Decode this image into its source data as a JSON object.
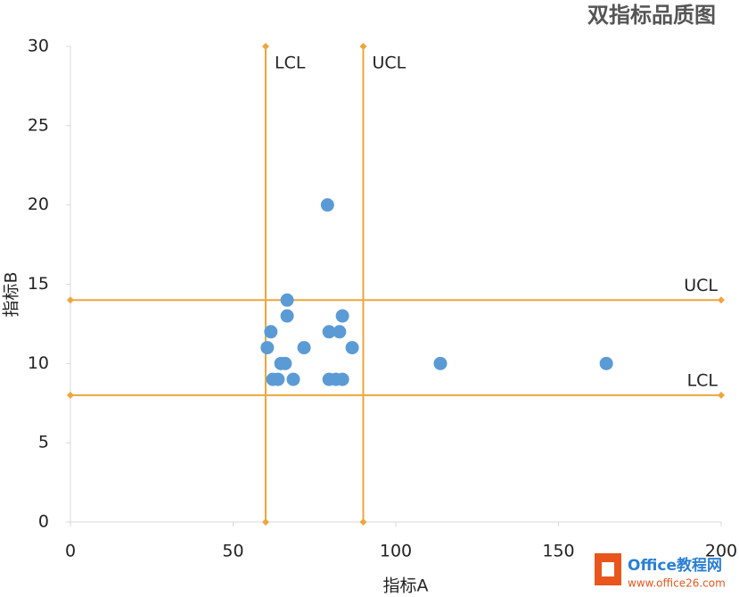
{
  "chart_data": {
    "type": "scatter",
    "title": "双指标品质图",
    "x_label": "指标A",
    "y_label": "指标B",
    "xlim": [
      0,
      200
    ],
    "ylim": [
      0,
      30
    ],
    "xticks": [
      0,
      50,
      100,
      150,
      200
    ],
    "yticks": [
      0,
      5,
      10,
      15,
      20,
      25,
      30
    ],
    "series": [
      {
        "color": "#5b9bd5",
        "x": [
          79,
          66.6,
          66.6,
          83.6,
          61.6,
          79.5,
          82.7,
          60.5,
          71.8,
          86.6,
          64.7,
          66,
          113.7,
          164.7,
          62.2,
          63.8,
          68.5,
          79.5,
          81.6,
          83.6
        ],
        "values": [
          20,
          14,
          13,
          13,
          12,
          12,
          12,
          11,
          11,
          11,
          10,
          10,
          10,
          10,
          9,
          9,
          9,
          9,
          9,
          9
        ]
      }
    ],
    "control_lines": [
      {
        "label": "LCL",
        "axis": "x",
        "value": 60,
        "color": "#f0a53c"
      },
      {
        "label": "UCL",
        "axis": "x",
        "value": 90,
        "color": "#f0a53c"
      },
      {
        "label": "UCL",
        "axis": "y",
        "value": 14,
        "color": "#f0a53c"
      },
      {
        "label": "LCL",
        "axis": "y",
        "value": 8,
        "color": "#f0a53c"
      }
    ]
  },
  "watermark": {
    "brand": "Office教程网",
    "url": "www.office26.com"
  }
}
